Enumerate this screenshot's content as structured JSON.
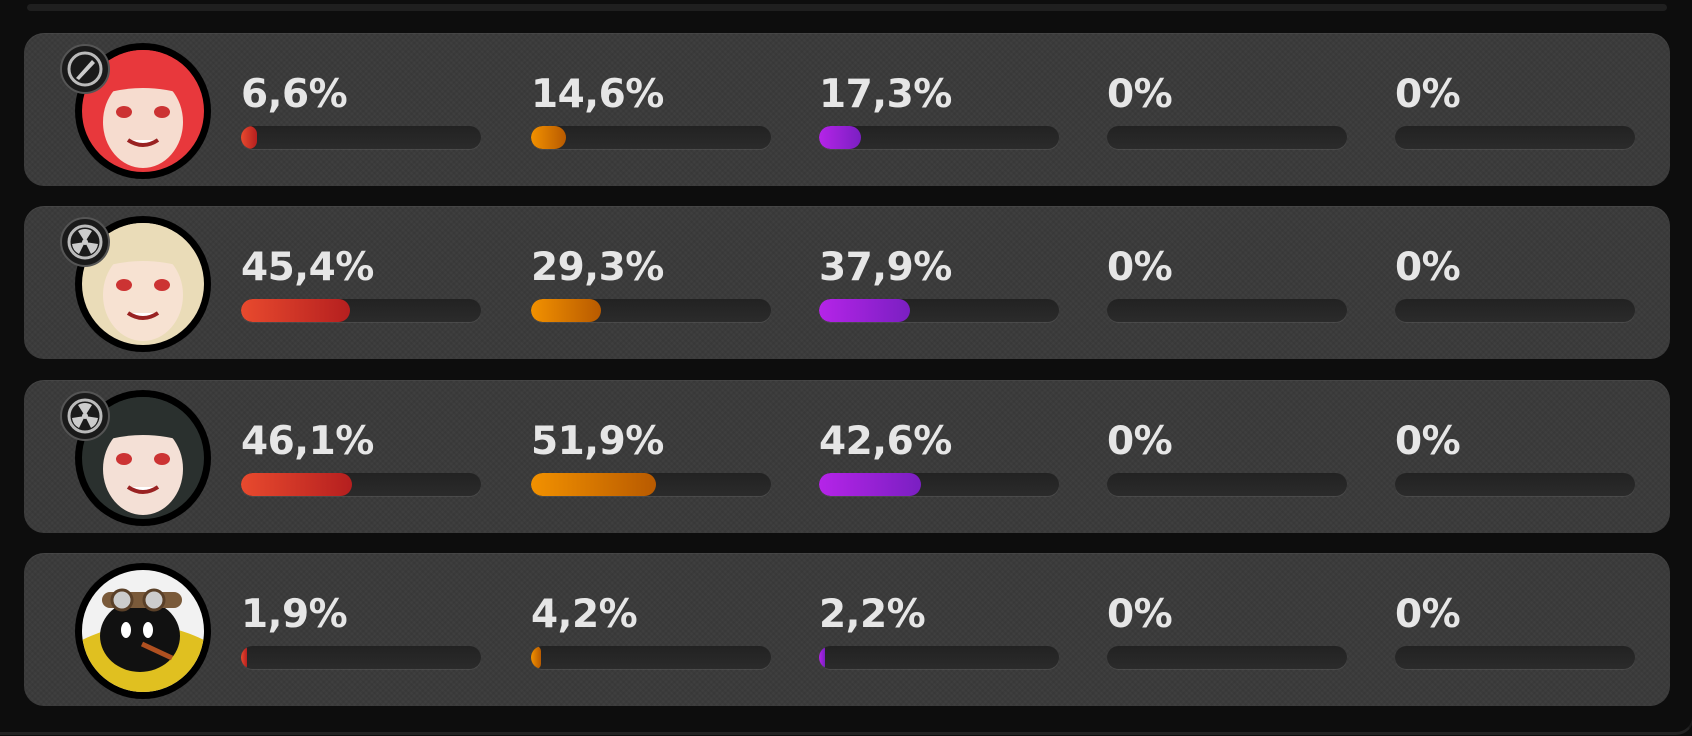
{
  "colors": {
    "page_bg": "#0d0d0d",
    "card_bg": "#3f3f3f",
    "stat_colors": [
      "#e84a2e",
      "#f29100",
      "#b524e8",
      "#888888",
      "#888888"
    ]
  },
  "rows": [
    {
      "avatar": "red-haired-character-avatar",
      "hair": "#e8383c",
      "skin": "#f6dccf",
      "badge_icon": "rocket-badge-icon",
      "stats": [
        {
          "label": "6,6%",
          "value": 6.6
        },
        {
          "label": "14,6%",
          "value": 14.6
        },
        {
          "label": "17,3%",
          "value": 17.3
        },
        {
          "label": "0%",
          "value": 0
        },
        {
          "label": "0%",
          "value": 0
        }
      ]
    },
    {
      "avatar": "blonde-character-avatar",
      "hair": "#eadcb8",
      "skin": "#f7e2d2",
      "badge_icon": "radiation-badge-icon",
      "stats": [
        {
          "label": "45,4%",
          "value": 45.4
        },
        {
          "label": "29,3%",
          "value": 29.3
        },
        {
          "label": "37,9%",
          "value": 37.9
        },
        {
          "label": "0%",
          "value": 0
        },
        {
          "label": "0%",
          "value": 0
        }
      ]
    },
    {
      "avatar": "dark-haired-character-avatar",
      "hair": "#2a302e",
      "skin": "#f4e0d6",
      "badge_icon": "radiation-badge-icon",
      "stats": [
        {
          "label": "46,1%",
          "value": 46.1
        },
        {
          "label": "51,9%",
          "value": 51.9
        },
        {
          "label": "42,6%",
          "value": 42.6
        },
        {
          "label": "0%",
          "value": 0
        },
        {
          "label": "0%",
          "value": 0
        }
      ]
    },
    {
      "avatar": "bangboo-goggles-avatar",
      "hair": "#ffffff",
      "skin": "#111111",
      "badge_icon": null,
      "stats": [
        {
          "label": "1,9%",
          "value": 1.9
        },
        {
          "label": "4,2%",
          "value": 4.2
        },
        {
          "label": "2,2%",
          "value": 2.2
        },
        {
          "label": "0%",
          "value": 0
        },
        {
          "label": "0%",
          "value": 0
        }
      ]
    }
  ]
}
